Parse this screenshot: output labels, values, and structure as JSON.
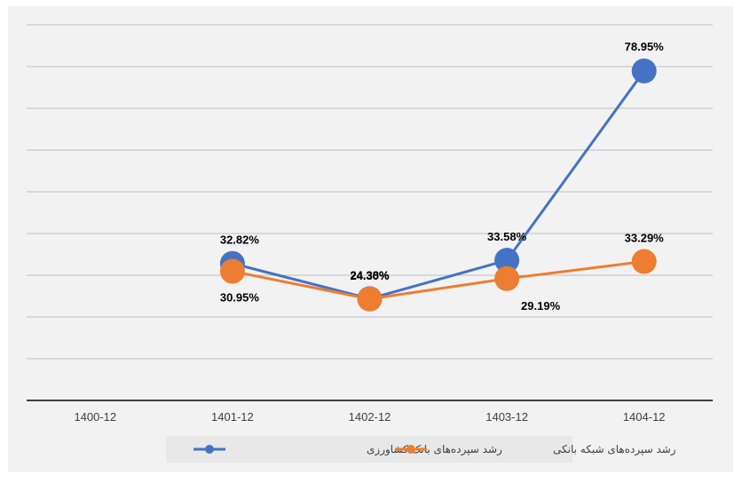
{
  "chart_data": {
    "type": "line",
    "categories": [
      "1400-12",
      "1401-12",
      "1402-12",
      "1403-12",
      "1404-12"
    ],
    "series": [
      {
        "name": "رشد سپرده‌های بانک کشاورزی",
        "color": "#4472c4",
        "values": [
          null,
          32.82,
          24.38,
          33.58,
          78.95
        ],
        "labels": [
          "",
          "32.82%",
          "24.38%",
          "33.58%",
          "78.95%"
        ]
      },
      {
        "name": "رشد سپرده‌های شبکه بانکی",
        "color": "#ed7d31",
        "values": [
          null,
          30.95,
          24.3,
          29.19,
          33.29
        ],
        "labels": [
          "",
          "30.95%",
          "24.30%",
          "29.19%",
          "33.29%"
        ]
      }
    ],
    "ylim": [
      0,
      90
    ],
    "grid": true,
    "legend_position": "bottom",
    "title": "",
    "xlabel": "",
    "ylabel": ""
  }
}
